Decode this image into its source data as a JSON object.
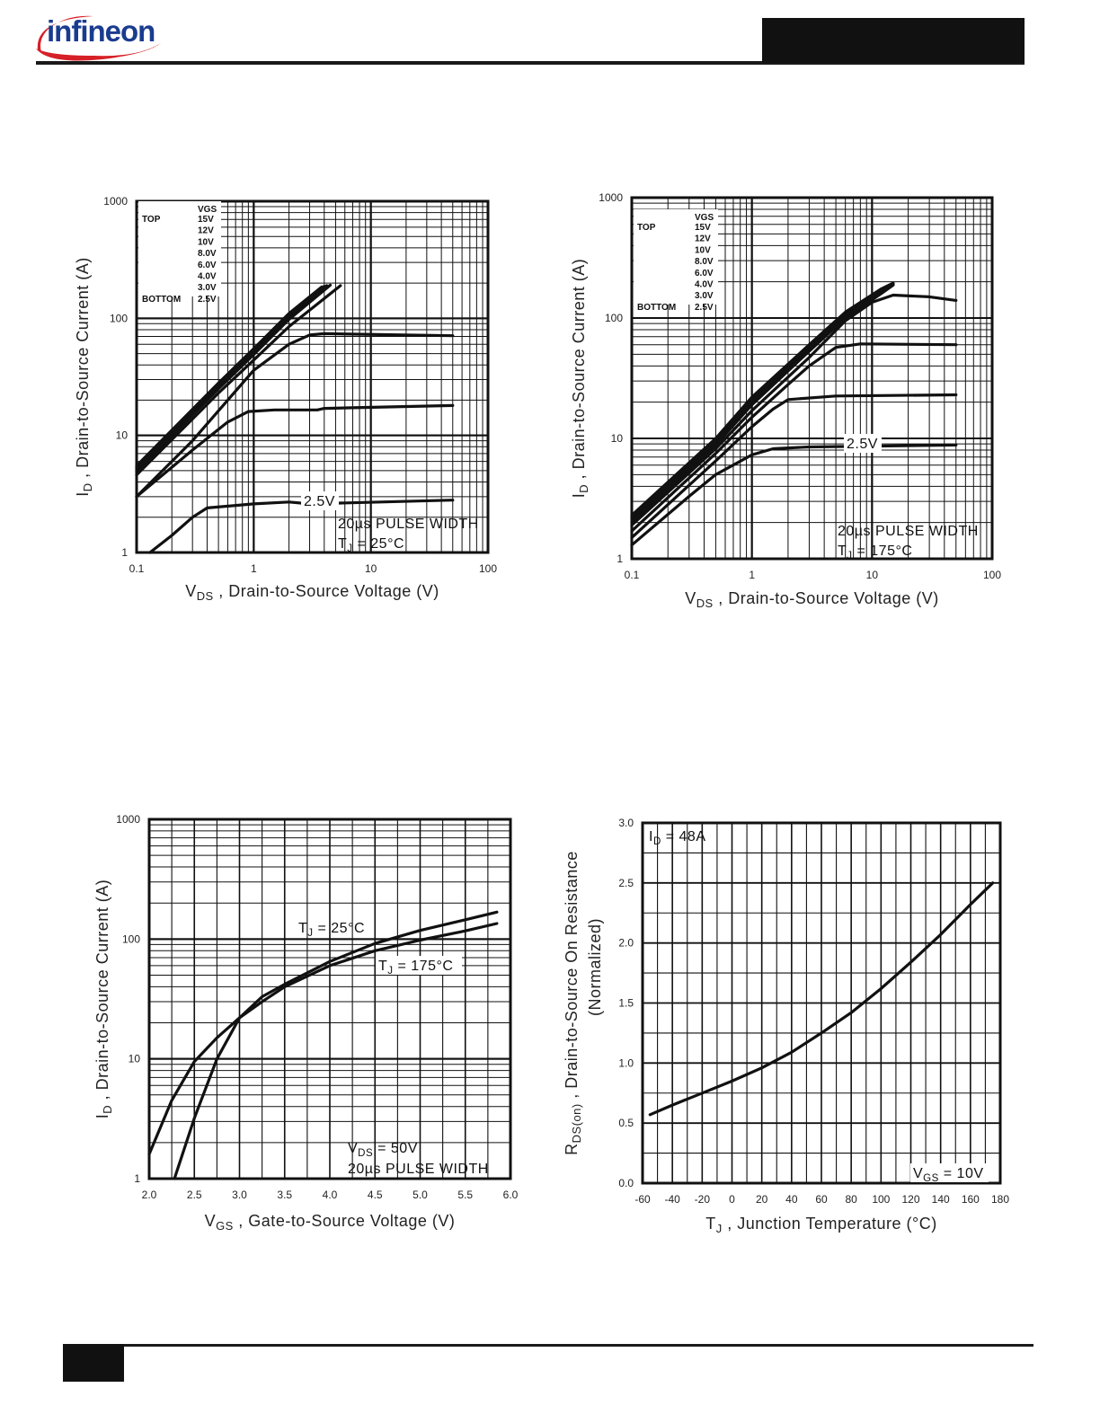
{
  "header": {
    "logo_text": "infineon"
  },
  "charts": [
    {
      "id": "fig1",
      "chart_data": {
        "type": "line",
        "xscale": "log",
        "yscale": "log",
        "xlim": [
          0.1,
          100
        ],
        "ylim": [
          1,
          1000
        ],
        "xticks": [
          "0.1",
          "1",
          "10",
          "100"
        ],
        "yticks": [
          "1",
          "10",
          "100",
          "1000"
        ],
        "xlabel": {
          "main": "V",
          "sub": "DS",
          "rest": " , Drain-to-Source Voltage (V)"
        },
        "ylabel": {
          "main": "I",
          "sub": "D",
          "rest": " , Drain-to-Source Current (A)"
        },
        "legend": {
          "header": "VGS",
          "top_label": "TOP",
          "bottom_label": "BOTTOM",
          "entries": [
            "15V",
            "12V",
            "10V",
            "8.0V",
            "6.0V",
            "4.0V",
            "3.0V",
            "2.5V"
          ]
        },
        "annotations": [
          {
            "text": "2.5V"
          },
          {
            "text": "20µs PULSE WIDTH"
          },
          {
            "main": "T",
            "sub": "J",
            "rest": " = 25°C"
          }
        ],
        "series": [
          {
            "x": [
              0.1,
              0.5,
              1,
              2,
              3.8
            ],
            "y": [
              5.5,
              28,
              55,
              110,
              185
            ]
          },
          {
            "x": [
              0.1,
              0.5,
              1,
              2,
              4
            ],
            "y": [
              5.3,
              27,
              53,
              106,
              188
            ]
          },
          {
            "x": [
              0.1,
              0.5,
              1,
              2,
              4.2
            ],
            "y": [
              5.1,
              26,
              51,
              102,
              190
            ]
          },
          {
            "x": [
              0.1,
              0.5,
              1,
              2,
              4.5
            ],
            "y": [
              4.9,
              25,
              49,
              98,
              192
            ]
          },
          {
            "x": [
              0.1,
              0.5,
              1,
              2,
              5.5
            ],
            "y": [
              4.6,
              23,
              44,
              85,
              190
            ]
          },
          {
            "x": [
              0.1,
              0.3,
              0.6,
              1,
              2,
              3,
              4,
              50
            ],
            "y": [
              3,
              9,
              20,
              36,
              60,
              72,
              74,
              71
            ]
          },
          {
            "x": [
              0.1,
              0.3,
              0.6,
              0.9,
              1.5,
              3.5,
              4,
              50
            ],
            "y": [
              3,
              7.5,
              13,
              16,
              16.5,
              16.5,
              17,
              18
            ]
          },
          {
            "x": [
              0.13,
              0.2,
              0.3,
              0.4,
              1,
              2,
              3,
              50
            ],
            "y": [
              1,
              1.4,
              2,
              2.4,
              2.6,
              2.7,
              2.6,
              2.8
            ]
          }
        ]
      }
    },
    {
      "id": "fig2",
      "chart_data": {
        "type": "line",
        "xscale": "log",
        "yscale": "log",
        "xlim": [
          0.1,
          100
        ],
        "ylim": [
          1,
          1000
        ],
        "xticks": [
          "0.1",
          "1",
          "10",
          "100"
        ],
        "yticks": [
          "1",
          "10",
          "100",
          "1000"
        ],
        "xlabel": {
          "main": "V",
          "sub": "DS",
          "rest": " , Drain-to-Source Voltage (V)"
        },
        "ylabel": {
          "main": "I",
          "sub": "D",
          "rest": " , Drain-to-Source Current (A)"
        },
        "legend": {
          "header": "VGS",
          "top_label": "TOP",
          "bottom_label": "BOTTOM",
          "entries": [
            "15V",
            "12V",
            "10V",
            "8.0V",
            "6.0V",
            "4.0V",
            "3.0V",
            "2.5V"
          ]
        },
        "annotations": [
          {
            "text": "2.5V"
          },
          {
            "text": "20µs PULSE WIDTH"
          },
          {
            "main": "T",
            "sub": "J",
            "rest": " = 175°C"
          }
        ],
        "series": [
          {
            "x": [
              0.1,
              0.5,
              1,
              3,
              6,
              12,
              15
            ],
            "y": [
              2.3,
              10,
              22,
              60,
              112,
              175,
              195
            ]
          },
          {
            "x": [
              0.1,
              0.5,
              1,
              3,
              6,
              12,
              15
            ],
            "y": [
              2.2,
              9.6,
              21,
              58,
              108,
              170,
              192
            ]
          },
          {
            "x": [
              0.1,
              0.5,
              1,
              3,
              6,
              12,
              15
            ],
            "y": [
              2.1,
              9.2,
              20,
              56,
              104,
              165,
              190
            ]
          },
          {
            "x": [
              0.1,
              0.5,
              1,
              3,
              6,
              12,
              15
            ],
            "y": [
              2.0,
              8.8,
              19,
              53,
              100,
              160,
              188
            ]
          },
          {
            "x": [
              0.1,
              0.5,
              1,
              3,
              6,
              10,
              15,
              30,
              50
            ],
            "y": [
              1.9,
              8.2,
              17,
              47,
              95,
              135,
              155,
              150,
              140
            ]
          },
          {
            "x": [
              0.1,
              0.5,
              1,
              2,
              3,
              5,
              8,
              50
            ],
            "y": [
              1.7,
              7.5,
              15,
              28,
              40,
              57,
              61,
              60
            ]
          },
          {
            "x": [
              0.1,
              0.5,
              1,
              1.5,
              2,
              5,
              50
            ],
            "y": [
              1.5,
              6.5,
              12.5,
              17.5,
              21,
              22.5,
              23
            ]
          },
          {
            "x": [
              0.1,
              0.3,
              0.5,
              1,
              1.5,
              3,
              50
            ],
            "y": [
              1.3,
              3.3,
              5,
              7.3,
              8.2,
              8.5,
              8.8
            ]
          }
        ]
      }
    },
    {
      "id": "fig3",
      "chart_data": {
        "type": "line",
        "xscale": "linear",
        "yscale": "log",
        "xlim": [
          2.0,
          6.0
        ],
        "ylim": [
          1,
          1000
        ],
        "xticks": [
          "2.0",
          "2.5",
          "3.0",
          "3.5",
          "4.0",
          "4.5",
          "5.0",
          "5.5",
          "6.0"
        ],
        "yticks": [
          "1",
          "10",
          "100",
          "1000"
        ],
        "xlabel": {
          "main": "V",
          "sub": "GS",
          "rest": " , Gate-to-Source Voltage (V)"
        },
        "ylabel": {
          "main": "I",
          "sub": "D",
          "rest": " , Drain-to-Source Current (A)"
        },
        "annotations": [
          {
            "main": "T",
            "sub": "J",
            "rest": " = 25°C"
          },
          {
            "main": "T",
            "sub": "J",
            "rest": " = 175°C"
          },
          {
            "main": "V",
            "sub": "DS",
            "rest": " = 50V"
          },
          {
            "text": "20µs PULSE WIDTH"
          }
        ],
        "series": [
          {
            "x": [
              2.28,
              2.5,
              2.75,
              3.0,
              3.25,
              3.5,
              4.0,
              4.5,
              5.0,
              5.5,
              5.85
            ],
            "y": [
              1,
              3.2,
              10,
              22,
              33,
              42,
              65,
              92,
              118,
              145,
              168
            ]
          },
          {
            "x": [
              2.0,
              2.25,
              2.5,
              2.75,
              3.0,
              3.25,
              3.5,
              4.0,
              4.5,
              5.0,
              5.5,
              5.85
            ],
            "y": [
              1.6,
              4.5,
              9.5,
              15,
              22,
              30,
              40,
              60,
              80,
              98,
              117,
              135
            ]
          }
        ]
      }
    },
    {
      "id": "fig4",
      "chart_data": {
        "type": "line",
        "xscale": "linear",
        "yscale": "linear",
        "xlim": [
          -60,
          180
        ],
        "ylim": [
          0.0,
          3.0
        ],
        "xticks": [
          "-60",
          "-40",
          "-20",
          "0",
          "20",
          "40",
          "60",
          "80",
          "100",
          "120",
          "140",
          "160",
          "180"
        ],
        "yticks": [
          "0.0",
          "0.5",
          "1.0",
          "1.5",
          "2.0",
          "2.5",
          "3.0"
        ],
        "xlabel": {
          "main": "T",
          "sub": "J",
          "rest": " , Junction Temperature (°C)"
        },
        "ylabel": {
          "main": "R",
          "sub": "DS(on)",
          "rest": " ,   Drain-to-Source On Resistance",
          "line2": "(Normalized)"
        },
        "annotations": [
          {
            "main": "I",
            "sub": "D",
            "rest": " = 48A"
          },
          {
            "main": "V",
            "sub": "GS",
            "rest": " = 10V"
          }
        ],
        "series": [
          {
            "x": [
              -55,
              -40,
              -20,
              0,
              20,
              40,
              60,
              80,
              100,
              120,
              140,
              160,
              175
            ],
            "y": [
              0.57,
              0.65,
              0.75,
              0.85,
              0.96,
              1.09,
              1.25,
              1.42,
              1.62,
              1.84,
              2.07,
              2.32,
              2.5
            ]
          }
        ]
      }
    }
  ]
}
